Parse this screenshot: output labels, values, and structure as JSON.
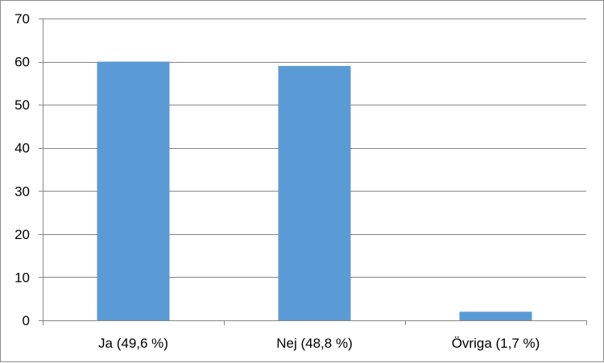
{
  "chart_data": {
    "type": "bar",
    "title": "",
    "xlabel": "",
    "ylabel": "",
    "categories": [
      "Ja (49,6 %)",
      "Nej (48,8 %)",
      "Övriga (1,7 %)"
    ],
    "values": [
      60,
      59,
      2
    ],
    "ylim": [
      0,
      70
    ],
    "yticks": [
      0,
      10,
      20,
      30,
      40,
      50,
      60,
      70
    ],
    "grid": true,
    "legend": "none",
    "colors": {
      "bar": "#5b9bd5",
      "grid": "#868686",
      "axis": "#868686"
    }
  }
}
